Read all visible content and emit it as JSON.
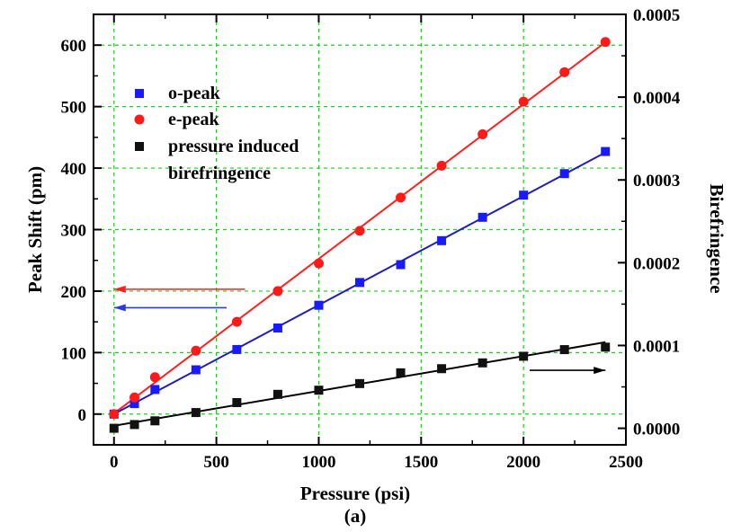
{
  "chart_data": {
    "type": "scatter",
    "xlabel": "Pressure (psi)",
    "ylabel": "Peak Shift (pm)",
    "y2label": "Birefringence",
    "caption": "(a)",
    "xlim": [
      -100,
      2500
    ],
    "ylim": [
      -50,
      650
    ],
    "y2lim": [
      -2e-05,
      0.0005
    ],
    "xticks": [
      0,
      500,
      1000,
      1500,
      2000,
      2500
    ],
    "yticks": [
      0,
      100,
      200,
      300,
      400,
      500,
      600
    ],
    "y2ticks": [
      0,
      0.0001,
      0.0002,
      0.0003,
      0.0004,
      0.0005
    ],
    "y2tick_labels": [
      "0.0000",
      "0.0001",
      "0.0002",
      "0.0003",
      "0.0004",
      "0.0005"
    ],
    "grid": true,
    "legend_position": "top-left",
    "series": [
      {
        "name": "o-peak",
        "axis": "left",
        "marker": "square",
        "color": "#1a1aff",
        "line_color": "#1f1fb4",
        "x": [
          0,
          100,
          200,
          400,
          600,
          800,
          1000,
          1200,
          1400,
          1600,
          1800,
          2000,
          2200,
          2400
        ],
        "y": [
          0,
          17,
          40,
          72,
          105,
          140,
          177,
          214,
          243,
          282,
          320,
          356,
          391,
          427
        ]
      },
      {
        "name": "e-peak",
        "axis": "left",
        "marker": "circle",
        "color": "#ff1a1a",
        "line_color": "#ff2020",
        "x": [
          0,
          100,
          200,
          400,
          600,
          800,
          1000,
          1200,
          1400,
          1600,
          1800,
          2000,
          2200,
          2400
        ],
        "y": [
          0,
          27,
          60,
          103,
          150,
          200,
          245,
          298,
          352,
          404,
          455,
          508,
          556,
          605
        ]
      },
      {
        "name": "pressure induced birefringence",
        "axis": "right",
        "marker": "square",
        "color": "#111111",
        "line_color": "#000000",
        "x": [
          0,
          100,
          200,
          400,
          600,
          800,
          1000,
          1200,
          1400,
          1600,
          1800,
          2000,
          2200,
          2400
        ],
        "y": [
          0.0,
          4.5e-06,
          9e-06,
          1.9e-05,
          3.1e-05,
          4.1e-05,
          4.6e-05,
          5.4e-05,
          6.7e-05,
          7.2e-05,
          7.9e-05,
          8.7e-05,
          9.5e-05,
          9.8e-05
        ]
      }
    ],
    "legend_lines": [
      [
        "o-peak"
      ],
      [
        "e-peak"
      ],
      [
        "pressure induced",
        "birefringence"
      ]
    ],
    "arrows": [
      {
        "points_to": "left",
        "color": "#ff2020",
        "x_from": 640,
        "x_to": 0,
        "y": 203
      },
      {
        "points_to": "left",
        "color": "#2a3bdc",
        "x_from": 550,
        "x_to": 0,
        "y": 173
      },
      {
        "points_to": "right",
        "color": "#000000",
        "x_from": 2030,
        "x_to": 2400,
        "y2": 7e-05
      }
    ]
  }
}
